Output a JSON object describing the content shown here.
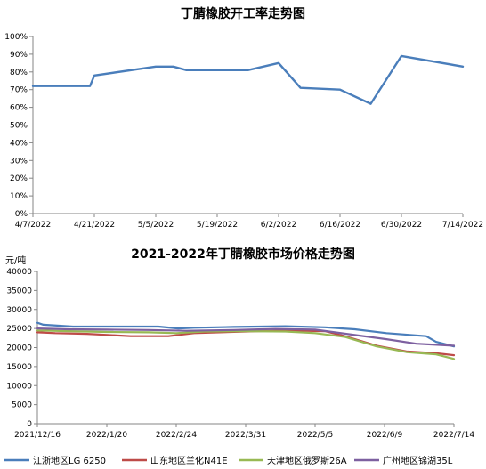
{
  "chart_data": [
    {
      "type": "line",
      "title": "丁腈橡胶开工率走势图",
      "xlabel": "",
      "ylabel": "",
      "ylim": [
        0,
        100
      ],
      "y_ticks": [
        "0%",
        "10%",
        "20%",
        "30%",
        "40%",
        "50%",
        "60%",
        "70%",
        "80%",
        "90%",
        "100%"
      ],
      "x_ticks": [
        "4/7/2022",
        "4/21/2022",
        "5/5/2022",
        "5/19/2022",
        "6/2/2022",
        "6/16/2022",
        "6/30/2022",
        "7/14/2022"
      ],
      "x_range": [
        "2022-04-07",
        "2022-07-14"
      ],
      "grid": false,
      "color": "#4a7ebb",
      "series": [
        {
          "x": [
            "2022-04-07",
            "2022-04-14",
            "2022-04-20",
            "2022-04-21",
            "2022-05-05",
            "2022-05-09",
            "2022-05-12",
            "2022-05-19",
            "2022-05-26",
            "2022-06-02",
            "2022-06-07",
            "2022-06-16",
            "2022-06-23",
            "2022-06-30",
            "2022-07-14"
          ],
          "values": [
            72,
            72,
            72,
            78,
            83,
            83,
            81,
            81,
            81,
            85,
            71,
            70,
            62,
            89,
            83
          ]
        }
      ]
    },
    {
      "type": "line",
      "title": "2021-2022年丁腈橡胶市场价格走势图",
      "unit_label": "元/吨",
      "xlabel": "",
      "ylabel": "",
      "ylim": [
        0,
        40000
      ],
      "y_ticks": [
        "0",
        "5000",
        "10000",
        "15000",
        "20000",
        "25000",
        "30000",
        "35000",
        "40000"
      ],
      "x_ticks": [
        "2021/12/16",
        "2022/1/20",
        "2022/2/24",
        "2022/3/31",
        "2022/5/5",
        "2022/6/9",
        "2022/7/14"
      ],
      "x_range": [
        "2021-12-16",
        "2022-07-14"
      ],
      "grid": false,
      "legend_position": "bottom",
      "series": [
        {
          "name": "江浙地区LG 6250",
          "color": "#4a7ebb",
          "x": [
            "2021-12-16",
            "2021-12-19",
            "2022-01-03",
            "2022-02-15",
            "2022-02-25",
            "2022-03-05",
            "2022-03-25",
            "2022-04-20",
            "2022-05-10",
            "2022-05-25",
            "2022-06-10",
            "2022-06-30",
            "2022-07-05",
            "2022-07-14"
          ],
          "values": [
            26500,
            26000,
            25500,
            25500,
            25000,
            25200,
            25400,
            25600,
            25300,
            24800,
            23800,
            23000,
            21500,
            20300
          ]
        },
        {
          "name": "山东地区兰化N41E",
          "color": "#be4b48",
          "x": [
            "2021-12-16",
            "2021-12-25",
            "2022-01-10",
            "2022-02-01",
            "2022-02-20",
            "2022-03-05",
            "2022-03-31",
            "2022-04-20",
            "2022-05-10",
            "2022-05-20",
            "2022-06-05",
            "2022-06-20",
            "2022-07-05",
            "2022-07-14"
          ],
          "values": [
            24000,
            23800,
            23600,
            23000,
            23000,
            23800,
            24200,
            24500,
            24300,
            23000,
            20500,
            19000,
            18500,
            18000
          ]
        },
        {
          "name": "天津地区俄罗斯26A",
          "color": "#98b954",
          "x": [
            "2021-12-16",
            "2022-01-01",
            "2022-01-20",
            "2022-02-10",
            "2022-02-24",
            "2022-03-10",
            "2022-03-31",
            "2022-04-20",
            "2022-05-05",
            "2022-05-20",
            "2022-06-05",
            "2022-06-20",
            "2022-07-05",
            "2022-07-14"
          ],
          "values": [
            24500,
            24300,
            24100,
            24000,
            23800,
            24200,
            24300,
            24200,
            23800,
            22800,
            20300,
            18800,
            18200,
            17000
          ]
        },
        {
          "name": "广州地区锦湖35L",
          "color": "#7d60a0",
          "x": [
            "2021-12-16",
            "2022-01-01",
            "2022-01-20",
            "2022-02-10",
            "2022-03-01",
            "2022-03-25",
            "2022-04-15",
            "2022-05-05",
            "2022-05-25",
            "2022-06-10",
            "2022-06-25",
            "2022-07-14"
          ],
          "values": [
            25000,
            24800,
            24700,
            24600,
            24400,
            24600,
            24900,
            24700,
            23300,
            22200,
            21000,
            20500
          ]
        }
      ]
    }
  ]
}
